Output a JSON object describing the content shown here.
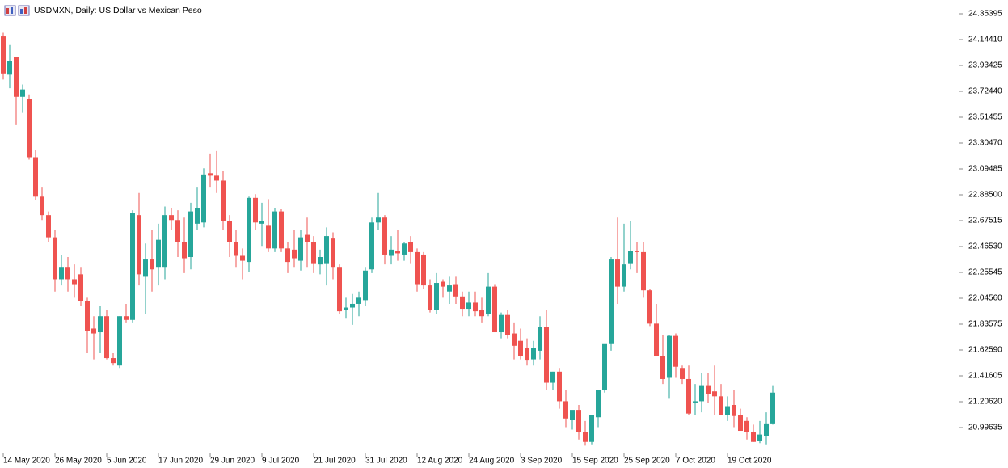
{
  "chart_data": {
    "type": "candlestick",
    "title": "USDMXN, Daily:  US Dollar vs Mexican Peso",
    "up_color": "#26a69a",
    "down_color": "#ef5350",
    "categories": [
      "14 May 2020",
      null,
      null,
      null,
      null,
      null,
      null,
      null,
      "26 May 2020",
      null,
      null,
      null,
      null,
      null,
      null,
      null,
      "5 Jun 2020",
      null,
      null,
      null,
      null,
      null,
      null,
      null,
      "17 Jun 2020",
      null,
      null,
      null,
      null,
      null,
      null,
      null,
      "29 Jun 2020",
      null,
      null,
      null,
      null,
      null,
      null,
      null,
      "9 Jul 2020",
      null,
      null,
      null,
      null,
      null,
      null,
      null,
      "21 Jul 2020",
      null,
      null,
      null,
      null,
      null,
      null,
      null,
      "31 Jul 2020",
      null,
      null,
      null,
      null,
      null,
      null,
      null,
      "12 Aug 2020",
      null,
      null,
      null,
      null,
      null,
      null,
      null,
      "24 Aug 2020",
      null,
      null,
      null,
      null,
      null,
      null,
      null,
      "3 Sep 2020",
      null,
      null,
      null,
      null,
      null,
      null,
      null,
      "15 Sep 2020",
      null,
      null,
      null,
      null,
      null,
      null,
      null,
      "25 Sep 2020",
      null,
      null,
      null,
      null,
      null,
      null,
      null,
      "7 Oct 2020",
      null,
      null,
      null,
      null,
      null,
      null,
      null,
      "19 Oct 2020",
      null,
      null,
      null,
      null,
      null,
      null,
      null
    ],
    "open": [
      24.17,
      23.86,
      24.0,
      23.68,
      23.66,
      23.19,
      22.87,
      22.72,
      22.54,
      22.2,
      22.3,
      22.2,
      22.24,
      22.02,
      21.8,
      21.77,
      21.9,
      21.56,
      21.5,
      21.9,
      21.87,
      22.72,
      22.22,
      22.36,
      22.3,
      22.3,
      22.72,
      22.68,
      22.5,
      22.38,
      22.65,
      22.66,
      23.06,
      23.04,
      23.0,
      22.67,
      22.5,
      22.39,
      22.34,
      22.86,
      22.65,
      22.64,
      22.45,
      22.75,
      22.45,
      22.44,
      22.35,
      22.56,
      22.5,
      22.32,
      22.33,
      22.53,
      22.3,
      21.95,
      21.97,
      22.0,
      22.03,
      22.28,
      22.66,
      22.7,
      22.39,
      22.43,
      22.4,
      22.5,
      22.42,
      22.4,
      22.15,
      21.95,
      22.18,
      22.1,
      22.16,
      22.06,
      21.96,
      22.01,
      21.95,
      21.92,
      22.14,
      21.77,
      21.91,
      21.76,
      21.7,
      21.64,
      21.55,
      21.62,
      21.81,
      21.36,
      21.45,
      21.21,
      21.06,
      21.14,
      20.96,
      20.88,
      21.08,
      21.3,
      21.68,
      22.36,
      22.14,
      22.33,
      22.43,
      22.42,
      22.11,
      21.84,
      21.58,
      21.4,
      21.74,
      21.48,
      21.39,
      21.2,
      21.21,
      21.34,
      21.29,
      21.25,
      21.1,
      21.18,
      21.1,
      21.05,
      20.96,
      20.89,
      20.93,
      21.03
    ],
    "high": [
      24.2,
      24.1,
      24.0,
      23.78,
      23.7,
      23.25,
      22.95,
      22.75,
      22.6,
      22.4,
      22.38,
      22.32,
      22.3,
      22.05,
      21.9,
      21.98,
      21.95,
      21.6,
      21.9,
      22.0,
      22.76,
      22.9,
      22.49,
      22.6,
      22.65,
      22.79,
      22.78,
      22.76,
      22.7,
      22.82,
      22.95,
      23.1,
      23.22,
      23.24,
      23.08,
      22.72,
      22.6,
      22.45,
      22.87,
      22.89,
      22.82,
      22.85,
      22.78,
      22.77,
      22.5,
      22.6,
      22.6,
      22.7,
      22.55,
      22.44,
      22.62,
      22.58,
      22.32,
      22.05,
      22.08,
      22.1,
      22.3,
      22.7,
      22.9,
      22.72,
      22.55,
      22.6,
      22.5,
      22.55,
      22.45,
      22.42,
      22.2,
      22.25,
      22.2,
      22.22,
      22.22,
      22.1,
      22.1,
      22.1,
      22.05,
      22.25,
      22.16,
      21.93,
      21.95,
      21.85,
      21.8,
      21.72,
      21.7,
      21.9,
      21.95,
      21.45,
      21.48,
      21.3,
      21.12,
      21.18,
      21.05,
      21.1,
      21.3,
      21.66,
      22.38,
      22.7,
      22.65,
      22.67,
      22.5,
      22.5,
      22.12,
      22.0,
      21.75,
      21.75,
      21.76,
      21.5,
      21.5,
      21.35,
      21.44,
      21.44,
      21.5,
      21.35,
      21.25,
      21.3,
      21.15,
      21.08,
      21.02,
      21.05,
      21.12,
      21.34
    ],
    "low": [
      23.82,
      23.75,
      23.45,
      23.55,
      23.17,
      22.84,
      22.68,
      22.5,
      22.1,
      22.15,
      22.1,
      22.05,
      21.98,
      21.6,
      21.55,
      21.6,
      21.55,
      21.5,
      21.48,
      21.85,
      21.85,
      22.15,
      21.92,
      22.1,
      22.15,
      22.2,
      22.6,
      22.38,
      22.25,
      22.28,
      22.6,
      22.62,
      22.95,
      22.9,
      22.6,
      22.38,
      22.3,
      22.2,
      22.26,
      22.6,
      22.47,
      22.42,
      22.42,
      22.42,
      22.25,
      22.3,
      22.27,
      22.3,
      22.25,
      22.24,
      22.15,
      22.2,
      21.92,
      21.88,
      21.83,
      21.9,
      21.98,
      22.25,
      22.6,
      22.32,
      22.32,
      22.35,
      22.35,
      22.33,
      22.1,
      22.12,
      21.93,
      21.92,
      22.05,
      22.0,
      22.0,
      21.9,
      21.9,
      21.9,
      21.85,
      21.9,
      21.77,
      21.72,
      21.72,
      21.55,
      21.55,
      21.5,
      21.5,
      21.55,
      21.3,
      21.3,
      21.15,
      21.0,
      20.98,
      20.9,
      20.85,
      20.86,
      21.0,
      21.28,
      21.62,
      22.0,
      22.1,
      22.28,
      22.25,
      22.05,
      21.82,
      21.6,
      21.35,
      21.23,
      21.4,
      21.35,
      21.1,
      21.1,
      21.12,
      21.2,
      21.1,
      21.1,
      21.05,
      21.0,
      20.98,
      20.9,
      20.88,
      20.87,
      20.86,
      21.02
    ],
    "close": [
      23.87,
      23.97,
      23.68,
      23.74,
      23.19,
      22.87,
      22.72,
      22.54,
      22.2,
      22.3,
      22.2,
      22.16,
      22.02,
      21.78,
      21.76,
      21.9,
      21.56,
      21.52,
      21.9,
      21.87,
      22.74,
      22.24,
      22.36,
      22.28,
      22.52,
      22.72,
      22.68,
      22.5,
      22.37,
      22.75,
      22.78,
      23.05,
      23.04,
      23.0,
      22.67,
      22.5,
      22.39,
      22.35,
      22.86,
      22.66,
      22.67,
      22.45,
      22.75,
      22.45,
      22.34,
      22.37,
      22.54,
      22.5,
      22.33,
      22.38,
      22.55,
      22.3,
      21.94,
      21.97,
      22.0,
      22.05,
      22.27,
      22.66,
      22.7,
      22.4,
      22.44,
      22.41,
      22.49,
      22.42,
      22.16,
      22.15,
      21.95,
      22.17,
      22.14,
      22.15,
      22.06,
      21.96,
      22.01,
      21.94,
      21.9,
      22.14,
      21.77,
      21.91,
      21.75,
      21.66,
      21.58,
      21.54,
      21.64,
      21.81,
      21.36,
      21.45,
      21.21,
      21.07,
      21.14,
      20.96,
      20.88,
      21.1,
      21.3,
      21.68,
      22.36,
      22.14,
      22.32,
      22.43,
      22.42,
      22.11,
      21.84,
      21.58,
      21.39,
      21.74,
      21.49,
      21.39,
      21.11,
      21.21,
      21.34,
      21.27,
      21.25,
      21.1,
      21.17,
      21.09,
      20.97,
      20.96,
      20.88,
      20.94,
      21.03,
      21.28
    ],
    "ylim": [
      20.7865,
      24.4458
    ],
    "yticks": [
      20.99635,
      {
        "value": 21.2062,
        "label": "21.20620"
      },
      {
        "value": 21.41605,
        "label": "21.41605"
      },
      {
        "value": 21.6259,
        "label": "21.62590"
      },
      21.83575,
      {
        "value": 22.0456,
        "label": "22.04560"
      },
      22.25545,
      {
        "value": 22.4653,
        "label": "22.46530"
      },
      22.67515,
      {
        "value": 22.885,
        "label": "22.88500"
      },
      23.09485,
      {
        "value": 23.3047,
        "label": "23.30470"
      },
      23.51455,
      {
        "value": 23.7244,
        "label": "23.72440"
      },
      23.93425,
      {
        "value": 24.1441,
        "label": "24.14410"
      },
      24.35395
    ]
  }
}
